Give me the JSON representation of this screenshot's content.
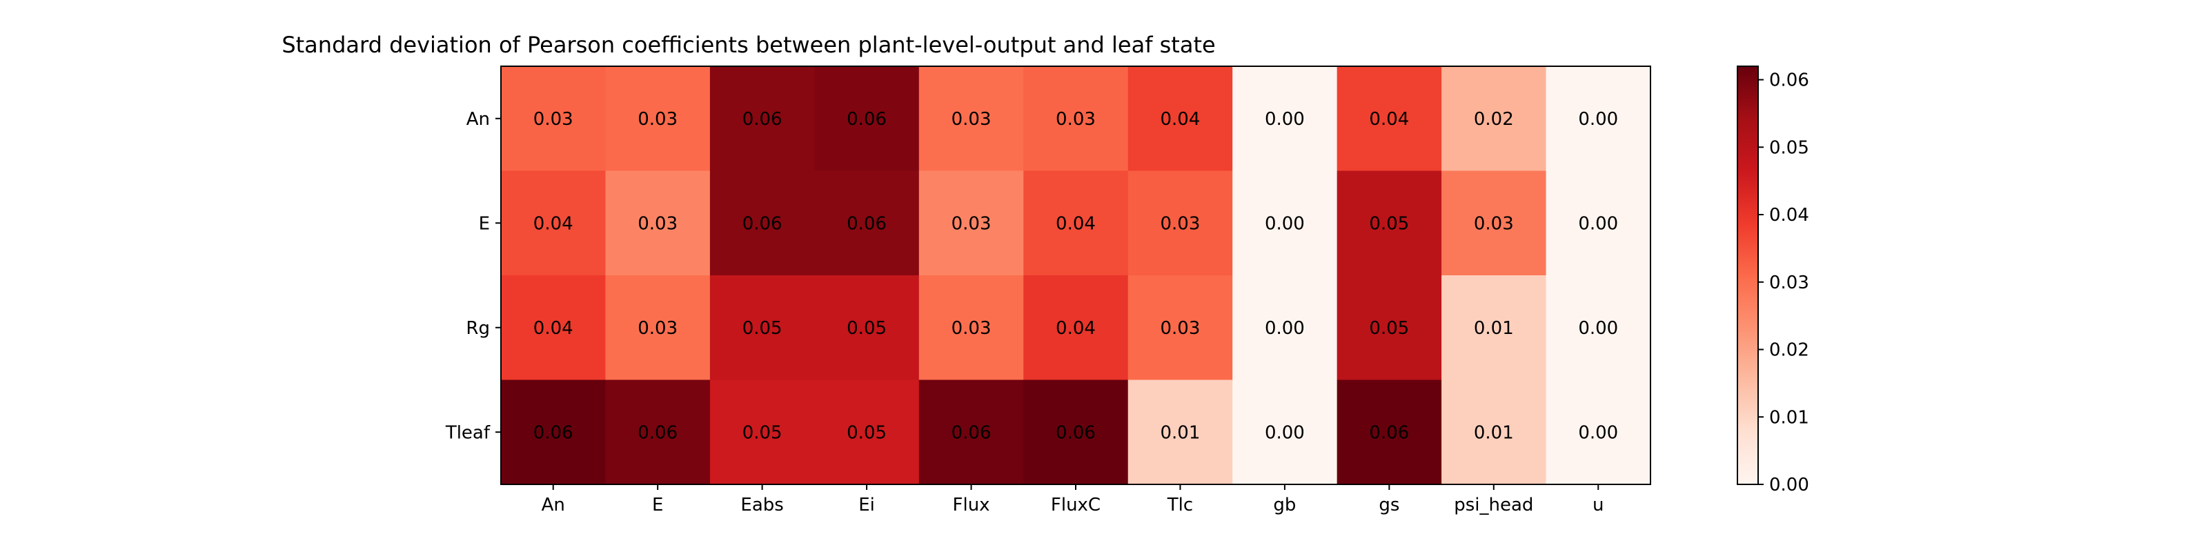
{
  "chart_data": {
    "type": "heatmap",
    "title": "Standard deviation of Pearson coefficients between plant-level-output and leaf state",
    "xlabel": "",
    "ylabel": "",
    "x_categories": [
      "An",
      "E",
      "Eabs",
      "Ei",
      "Flux",
      "FluxC",
      "Tlc",
      "gb",
      "gs",
      "psi_head",
      "u"
    ],
    "y_categories": [
      "An",
      "E",
      "Rg",
      "Tleaf"
    ],
    "values": [
      [
        0.032,
        0.031,
        0.058,
        0.059,
        0.03,
        0.032,
        0.038,
        0.0,
        0.038,
        0.017,
        0.0
      ],
      [
        0.036,
        0.026,
        0.058,
        0.058,
        0.026,
        0.036,
        0.033,
        0.0,
        0.05,
        0.028,
        0.0
      ],
      [
        0.039,
        0.03,
        0.048,
        0.048,
        0.03,
        0.04,
        0.031,
        0.0,
        0.05,
        0.011,
        0.0
      ],
      [
        0.062,
        0.06,
        0.046,
        0.046,
        0.061,
        0.062,
        0.011,
        0.0,
        0.062,
        0.011,
        0.0
      ]
    ],
    "cell_labels": [
      [
        "0.03",
        "0.03",
        "0.06",
        "0.06",
        "0.03",
        "0.03",
        "0.04",
        "0.00",
        "0.04",
        "0.02",
        "0.00"
      ],
      [
        "0.04",
        "0.03",
        "0.06",
        "0.06",
        "0.03",
        "0.04",
        "0.03",
        "0.00",
        "0.05",
        "0.03",
        "0.00"
      ],
      [
        "0.04",
        "0.03",
        "0.05",
        "0.05",
        "0.03",
        "0.04",
        "0.03",
        "0.00",
        "0.05",
        "0.01",
        "0.00"
      ],
      [
        "0.06",
        "0.06",
        "0.05",
        "0.05",
        "0.06",
        "0.06",
        "0.01",
        "0.00",
        "0.06",
        "0.01",
        "0.00"
      ]
    ],
    "colormap": "Reds",
    "colorbar": {
      "min": 0.0,
      "max": 0.062,
      "ticks": [
        0.0,
        0.01,
        0.02,
        0.03,
        0.04,
        0.05,
        0.06
      ],
      "tick_labels": [
        "0.00",
        "0.01",
        "0.02",
        "0.03",
        "0.04",
        "0.05",
        "0.06"
      ]
    },
    "grid": false,
    "legend": "none"
  }
}
